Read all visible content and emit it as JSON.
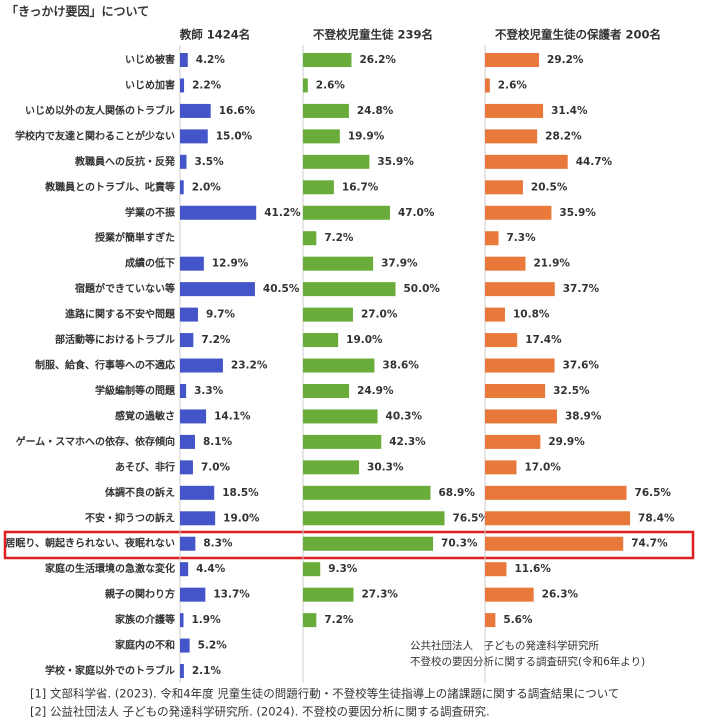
{
  "chart_data": {
    "type": "bar",
    "orientation": "horizontal",
    "title": "「きっかけ要因」について",
    "categories": [
      "いじめ被害",
      "いじめ加害",
      "いじめ以外の友人関係のトラブル",
      "学校内で友達と関わることが少ない",
      "教職員への反抗・反発",
      "教職員とのトラブル、叱責等",
      "学業の不振",
      "授業が簡単すぎた",
      "成績の低下",
      "宿題ができていない等",
      "進路に関する不安や問題",
      "部活動等におけるトラブル",
      "制服、給食、行事等への不適応",
      "学級編制等の問題",
      "感覚の過敏さ",
      "ゲーム・スマホへの依存、依存傾向",
      "あそび、非行",
      "体調不良の訴え",
      "不安・抑うつの訴え",
      "居眠り、朝起きられない、夜眠れない",
      "家庭の生活環境の急激な変化",
      "親子の関わり方",
      "家族の介護等",
      "家庭内の不和",
      "学校・家庭以外でのトラブル"
    ],
    "xlim": [
      0,
      100
    ],
    "series": [
      {
        "name": "教師 1424名",
        "color": "#4355c8",
        "values": [
          4.2,
          2.2,
          16.6,
          15.0,
          3.5,
          2.0,
          41.2,
          null,
          12.9,
          40.5,
          9.7,
          7.2,
          23.2,
          3.3,
          14.1,
          8.1,
          7.0,
          18.5,
          19.0,
          8.3,
          4.4,
          13.7,
          1.9,
          5.2,
          2.1
        ],
        "value_labels": [
          "4.2%",
          "2.2%",
          "16.6%",
          "15.0%",
          "3.5%",
          "2.0%",
          "41.2%",
          null,
          "12.9%",
          "40.5%",
          "9.7%",
          "7.2%",
          "23.2%",
          "3.3%",
          "14.1%",
          "8.1%",
          "7.0%",
          "18.5%",
          "19.0%",
          "8.3%",
          "4.4%",
          "13.7%",
          "1.9%",
          "5.2%",
          "2.1%"
        ]
      },
      {
        "name": "不登校児童生徒 239名",
        "color": "#6aac3a",
        "values": [
          26.2,
          2.6,
          24.8,
          19.9,
          35.9,
          16.7,
          47.0,
          7.2,
          37.9,
          50.0,
          27.0,
          19.0,
          38.6,
          24.9,
          40.3,
          42.3,
          30.3,
          68.9,
          76.5,
          70.3,
          9.3,
          27.3,
          7.2,
          null,
          null
        ],
        "value_labels": [
          "26.2%",
          "2.6%",
          "24.8%",
          "19.9%",
          "35.9%",
          "16.7%",
          "47.0%",
          "7.2%",
          "37.9%",
          "50.0%",
          "27.0%",
          "19.0%",
          "38.6%",
          "24.9%",
          "40.3%",
          "42.3%",
          "30.3%",
          "68.9%",
          "76.5%",
          "70.3%",
          "9.3%",
          "27.3%",
          "7.2%",
          null,
          null
        ]
      },
      {
        "name": "不登校児童生徒の保護者 200名",
        "color": "#e8793a",
        "values": [
          29.2,
          2.6,
          31.4,
          28.2,
          44.7,
          20.5,
          35.9,
          7.3,
          21.9,
          37.7,
          10.8,
          17.4,
          37.6,
          32.5,
          38.9,
          29.9,
          17.0,
          76.5,
          78.4,
          74.7,
          11.6,
          26.3,
          5.6,
          null,
          null
        ],
        "value_labels": [
          "29.2%",
          "2.6%",
          "31.4%",
          "28.2%",
          "44.7%",
          "20.5%",
          "35.9%",
          "7.3%",
          "21.9%",
          "37.7%",
          "10.8%",
          "17.4%",
          "37.6%",
          "32.5%",
          "38.9%",
          "29.9%",
          "17.0%",
          "76.5%",
          "78.4%",
          "74.7%",
          "11.6%",
          "26.3%",
          "5.6%",
          null,
          null
        ]
      }
    ],
    "notes": [
      "公共社団法人　子どもの発達科学研究所",
      "不登校の要因分析に関する調査研究(令和6年より)"
    ],
    "sources": [
      "[1] 文部科学省. (2023). 令和4年度 児童生徒の問題行動・不登校等生徒指導上の諸課題に関する調査結果について",
      "[2] 公益社団法人 子どもの発達科学研究所. (2024). 不登校の要因分析に関する調査研究."
    ]
  }
}
